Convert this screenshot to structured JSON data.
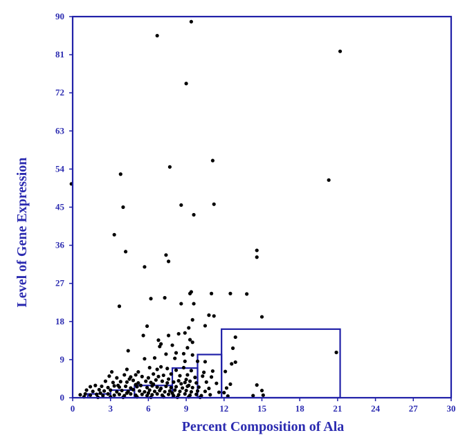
{
  "colors": {
    "axis": "#2020a8",
    "text": "#2b2bb0",
    "point": "#000000",
    "box": "#2020a8"
  },
  "chart_data": {
    "type": "scatter",
    "title": "",
    "xlabel": "Percent Composition of Ala",
    "ylabel": "Level of Gene Expression",
    "xlim": [
      0,
      30
    ],
    "ylim": [
      0,
      90
    ],
    "xticks": [
      "0",
      "3",
      "6",
      "9",
      "12",
      "15",
      "18",
      "21",
      "24",
      "27",
      "30"
    ],
    "yticks": [
      "0",
      "9",
      "18",
      "27",
      "36",
      "45",
      "54",
      "63",
      "72",
      "81",
      "90"
    ],
    "grid": false,
    "boxes": [
      {
        "x0": 1.2,
        "x1": 3.0,
        "y0": 0,
        "y1": 0.9
      },
      {
        "x0": 3.0,
        "x1": 4.9,
        "y0": 0,
        "y1": 1.8
      },
      {
        "x0": 4.9,
        "x1": 7.9,
        "y0": 0,
        "y1": 2.9
      },
      {
        "x0": 7.9,
        "x1": 9.9,
        "y0": 0,
        "y1": 7.0
      },
      {
        "x0": 9.9,
        "x1": 11.8,
        "y0": 0,
        "y1": 10.2
      },
      {
        "x0": 11.8,
        "x1": 21.2,
        "y0": 0,
        "y1": 16.2
      }
    ],
    "points": [
      [
        -0.1,
        50.5
      ],
      [
        6.7,
        85.5
      ],
      [
        9.4,
        88.8
      ],
      [
        21.2,
        81.8
      ],
      [
        9.0,
        74.2
      ],
      [
        7.7,
        54.5
      ],
      [
        3.8,
        52.8
      ],
      [
        11.1,
        56.0
      ],
      [
        20.3,
        51.4
      ],
      [
        4.0,
        45.0
      ],
      [
        8.6,
        45.5
      ],
      [
        11.2,
        45.7
      ],
      [
        9.6,
        43.2
      ],
      [
        3.3,
        38.5
      ],
      [
        4.2,
        34.5
      ],
      [
        7.4,
        33.7
      ],
      [
        7.6,
        32.2
      ],
      [
        5.7,
        30.9
      ],
      [
        14.6,
        34.8
      ],
      [
        14.6,
        33.2
      ],
      [
        9.3,
        24.6
      ],
      [
        9.4,
        25.0
      ],
      [
        11.0,
        24.6
      ],
      [
        12.5,
        24.6
      ],
      [
        13.8,
        24.5
      ],
      [
        6.2,
        23.4
      ],
      [
        7.3,
        23.6
      ],
      [
        8.6,
        22.2
      ],
      [
        9.6,
        22.2
      ],
      [
        3.7,
        21.6
      ],
      [
        10.8,
        19.5
      ],
      [
        11.2,
        19.3
      ],
      [
        15.0,
        19.1
      ],
      [
        9.5,
        18.4
      ],
      [
        5.9,
        16.9
      ],
      [
        10.5,
        17.0
      ],
      [
        9.2,
        16.5
      ],
      [
        8.9,
        15.3
      ],
      [
        8.4,
        15.1
      ],
      [
        5.6,
        14.7
      ],
      [
        7.6,
        14.7
      ],
      [
        6.8,
        13.6
      ],
      [
        9.3,
        13.7
      ],
      [
        9.5,
        13.1
      ],
      [
        12.9,
        14.3
      ],
      [
        7.0,
        12.7
      ],
      [
        6.9,
        12.1
      ],
      [
        7.9,
        12.4
      ],
      [
        9.1,
        11.8
      ],
      [
        4.4,
        11.1
      ],
      [
        8.2,
        10.6
      ],
      [
        8.8,
        10.4
      ],
      [
        7.4,
        10.3
      ],
      [
        9.5,
        10.1
      ],
      [
        12.7,
        11.7
      ],
      [
        20.9,
        10.7
      ],
      [
        5.7,
        9.2
      ],
      [
        6.5,
        9.4
      ],
      [
        8.1,
        9.3
      ],
      [
        8.9,
        8.6
      ],
      [
        9.9,
        8.6
      ],
      [
        10.5,
        8.5
      ],
      [
        12.6,
        8.0
      ],
      [
        12.9,
        8.4
      ],
      [
        3.1,
        6.1
      ],
      [
        4.3,
        6.7
      ],
      [
        5.2,
        6.1
      ],
      [
        6.1,
        7.1
      ],
      [
        6.7,
        6.7
      ],
      [
        7.0,
        7.3
      ],
      [
        7.5,
        6.9
      ],
      [
        8.2,
        6.5
      ],
      [
        8.8,
        7.1
      ],
      [
        9.4,
        6.4
      ],
      [
        10.4,
        6.0
      ],
      [
        11.1,
        6.3
      ],
      [
        12.1,
        6.2
      ],
      [
        2.9,
        5.1
      ],
      [
        3.5,
        4.7
      ],
      [
        4.1,
        5.4
      ],
      [
        4.6,
        4.9
      ],
      [
        5.0,
        5.4
      ],
      [
        5.5,
        5.0
      ],
      [
        6.0,
        4.7
      ],
      [
        6.4,
        5.6
      ],
      [
        6.8,
        5.0
      ],
      [
        7.2,
        5.3
      ],
      [
        7.8,
        5.6
      ],
      [
        8.5,
        5.2
      ],
      [
        9.1,
        5.4
      ],
      [
        9.7,
        4.8
      ],
      [
        10.3,
        5.1
      ],
      [
        11.0,
        4.9
      ],
      [
        2.6,
        3.9
      ],
      [
        3.2,
        3.6
      ],
      [
        3.8,
        3.8
      ],
      [
        4.3,
        3.7
      ],
      [
        4.8,
        4.1
      ],
      [
        5.2,
        3.5
      ],
      [
        5.8,
        3.9
      ],
      [
        6.2,
        3.6
      ],
      [
        6.6,
        4.2
      ],
      [
        7.1,
        3.9
      ],
      [
        7.5,
        3.5
      ],
      [
        8.0,
        3.7
      ],
      [
        8.4,
        4.0
      ],
      [
        8.9,
        3.6
      ],
      [
        9.3,
        3.9
      ],
      [
        9.8,
        3.5
      ],
      [
        10.6,
        3.7
      ],
      [
        11.4,
        3.4
      ],
      [
        12.5,
        3.2
      ],
      [
        14.6,
        3.0
      ],
      [
        1.4,
        2.6
      ],
      [
        1.8,
        2.9
      ],
      [
        2.3,
        2.7
      ],
      [
        2.8,
        2.4
      ],
      [
        3.3,
        2.8
      ],
      [
        3.7,
        2.5
      ],
      [
        4.2,
        2.7
      ],
      [
        4.6,
        2.3
      ],
      [
        5.1,
        2.6
      ],
      [
        5.4,
        2.9
      ],
      [
        5.9,
        2.4
      ],
      [
        6.3,
        2.8
      ],
      [
        6.7,
        2.5
      ],
      [
        7.0,
        2.2
      ],
      [
        7.4,
        2.7
      ],
      [
        7.8,
        2.4
      ],
      [
        8.2,
        2.6
      ],
      [
        8.7,
        2.3
      ],
      [
        9.1,
        2.7
      ],
      [
        9.5,
        2.4
      ],
      [
        10.0,
        2.5
      ],
      [
        10.8,
        2.2
      ],
      [
        12.2,
        2.3
      ],
      [
        15.0,
        1.7
      ],
      [
        1.1,
        1.8
      ],
      [
        1.6,
        1.5
      ],
      [
        2.1,
        1.9
      ],
      [
        2.5,
        1.6
      ],
      [
        3.0,
        1.8
      ],
      [
        3.5,
        1.4
      ],
      [
        3.9,
        1.7
      ],
      [
        4.4,
        1.5
      ],
      [
        4.8,
        1.9
      ],
      [
        5.3,
        1.6
      ],
      [
        5.7,
        1.4
      ],
      [
        6.1,
        1.8
      ],
      [
        6.5,
        1.5
      ],
      [
        6.9,
        1.7
      ],
      [
        7.3,
        1.4
      ],
      [
        7.7,
        1.6
      ],
      [
        8.1,
        1.8
      ],
      [
        8.5,
        1.5
      ],
      [
        9.0,
        1.7
      ],
      [
        9.4,
        1.4
      ],
      [
        9.9,
        1.6
      ],
      [
        10.5,
        1.5
      ],
      [
        11.6,
        1.3
      ],
      [
        12.0,
        1.2
      ],
      [
        0.6,
        0.7
      ],
      [
        1.0,
        0.9
      ],
      [
        1.4,
        0.6
      ],
      [
        1.9,
        0.8
      ],
      [
        2.4,
        0.5
      ],
      [
        2.8,
        0.9
      ],
      [
        3.3,
        0.6
      ],
      [
        3.7,
        0.8
      ],
      [
        4.1,
        0.5
      ],
      [
        4.6,
        0.9
      ],
      [
        5.0,
        0.6
      ],
      [
        5.5,
        0.8
      ],
      [
        5.9,
        0.5
      ],
      [
        6.3,
        0.7
      ],
      [
        6.7,
        0.9
      ],
      [
        7.1,
        0.6
      ],
      [
        7.6,
        0.8
      ],
      [
        8.0,
        0.5
      ],
      [
        8.4,
        0.7
      ],
      [
        8.9,
        0.9
      ],
      [
        9.3,
        0.6
      ],
      [
        9.8,
        0.8
      ],
      [
        10.2,
        0.5
      ],
      [
        10.9,
        0.7
      ],
      [
        12.3,
        0.4
      ],
      [
        14.3,
        0.5
      ],
      [
        15.1,
        0.6
      ],
      [
        0.9,
        0.2
      ],
      [
        2.0,
        0.1
      ],
      [
        3.0,
        0.2
      ],
      [
        4.0,
        0.1
      ],
      [
        5.1,
        0.2
      ],
      [
        6.2,
        0.1
      ],
      [
        7.2,
        0.2
      ],
      [
        8.3,
        0.1
      ],
      [
        9.2,
        0.2
      ],
      [
        10.1,
        0.1
      ],
      [
        3.6,
        2.9
      ],
      [
        5.0,
        3.1
      ],
      [
        6.4,
        3.2
      ],
      [
        8.6,
        3.3
      ],
      [
        9.0,
        4.3
      ],
      [
        7.6,
        4.4
      ],
      [
        4.5,
        4.4
      ],
      [
        9.2,
        2.9
      ],
      [
        7.9,
        1.1
      ],
      [
        6.0,
        1.1
      ],
      [
        4.3,
        1.1
      ],
      [
        2.2,
        1.1
      ]
    ]
  }
}
